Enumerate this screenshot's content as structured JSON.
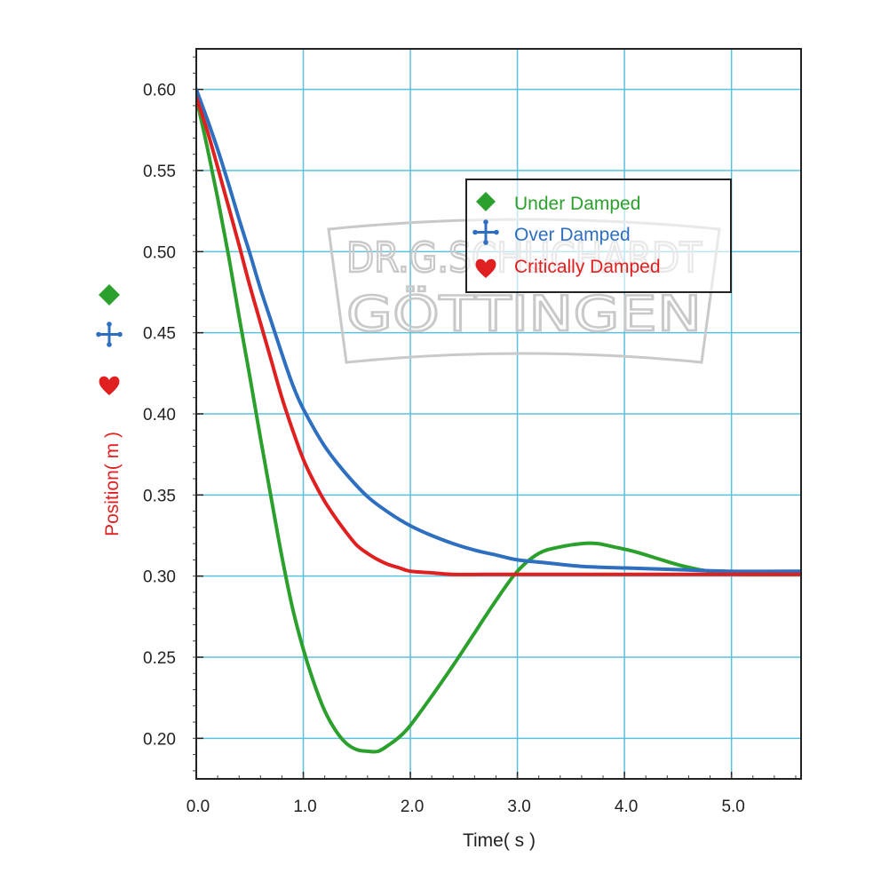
{
  "chart_data": {
    "type": "line",
    "xlabel": "Time( s )",
    "ylabel": "Position( m )",
    "xlim": [
      0,
      5.65
    ],
    "ylim": [
      0.175,
      0.625
    ],
    "x_ticks": [
      0.0,
      1.0,
      2.0,
      3.0,
      4.0,
      5.0
    ],
    "x_tick_labels": [
      "0.0",
      "1.0",
      "2.0",
      "3.0",
      "4.0",
      "5.0"
    ],
    "y_ticks": [
      0.2,
      0.25,
      0.3,
      0.35,
      0.4,
      0.45,
      0.5,
      0.55,
      0.6
    ],
    "y_tick_labels": [
      "0.20",
      "0.25",
      "0.30",
      "0.35",
      "0.40",
      "0.45",
      "0.50",
      "0.55",
      "0.60"
    ],
    "grid": true,
    "legend_position": "top-right",
    "watermark": {
      "line1": "DR.G.SCHUCHARDT",
      "line2": "GÖTTINGEN"
    },
    "series": [
      {
        "name": "Under Damped",
        "color": "#2ca02c",
        "marker": "diamond-icon",
        "x": [
          0.0,
          0.1,
          0.2,
          0.3,
          0.4,
          0.5,
          0.6,
          0.7,
          0.8,
          0.9,
          1.0,
          1.1,
          1.2,
          1.3,
          1.4,
          1.5,
          1.6,
          1.7,
          1.8,
          1.9,
          2.0,
          2.2,
          2.4,
          2.6,
          2.8,
          3.0,
          3.2,
          3.4,
          3.6,
          3.75,
          3.9,
          4.1,
          4.3,
          4.5,
          4.7,
          4.9,
          5.1,
          5.3,
          5.65
        ],
        "y": [
          0.595,
          0.565,
          0.533,
          0.498,
          0.46,
          0.423,
          0.385,
          0.348,
          0.312,
          0.28,
          0.255,
          0.234,
          0.217,
          0.205,
          0.197,
          0.193,
          0.192,
          0.192,
          0.196,
          0.201,
          0.208,
          0.226,
          0.245,
          0.265,
          0.285,
          0.303,
          0.314,
          0.318,
          0.32,
          0.32,
          0.318,
          0.315,
          0.311,
          0.307,
          0.304,
          0.302,
          0.301,
          0.301,
          0.301
        ]
      },
      {
        "name": "Over Damped",
        "color": "#2f6fc0",
        "marker": "cross-dots-icon",
        "x": [
          0.0,
          0.1,
          0.2,
          0.3,
          0.4,
          0.5,
          0.6,
          0.7,
          0.8,
          0.9,
          1.0,
          1.2,
          1.4,
          1.6,
          1.8,
          2.0,
          2.2,
          2.4,
          2.6,
          2.8,
          3.0,
          3.3,
          3.6,
          4.0,
          4.5,
          5.0,
          5.65
        ],
        "y": [
          0.6,
          0.582,
          0.563,
          0.542,
          0.52,
          0.499,
          0.477,
          0.457,
          0.437,
          0.418,
          0.403,
          0.38,
          0.363,
          0.349,
          0.339,
          0.331,
          0.325,
          0.32,
          0.316,
          0.313,
          0.31,
          0.308,
          0.306,
          0.305,
          0.304,
          0.303,
          0.303
        ]
      },
      {
        "name": "Critically Damped",
        "color": "#e02020",
        "marker": "heart-icon",
        "x": [
          0.0,
          0.1,
          0.2,
          0.3,
          0.4,
          0.5,
          0.6,
          0.7,
          0.8,
          0.9,
          1.0,
          1.1,
          1.2,
          1.3,
          1.4,
          1.5,
          1.6,
          1.7,
          1.8,
          1.9,
          2.0,
          2.2,
          2.4,
          2.7,
          3.0,
          4.0,
          5.0,
          5.65
        ],
        "y": [
          0.595,
          0.575,
          0.552,
          0.528,
          0.504,
          0.479,
          0.456,
          0.433,
          0.41,
          0.39,
          0.372,
          0.358,
          0.346,
          0.336,
          0.327,
          0.319,
          0.314,
          0.31,
          0.307,
          0.305,
          0.303,
          0.302,
          0.301,
          0.301,
          0.301,
          0.301,
          0.301,
          0.301
        ]
      }
    ]
  }
}
